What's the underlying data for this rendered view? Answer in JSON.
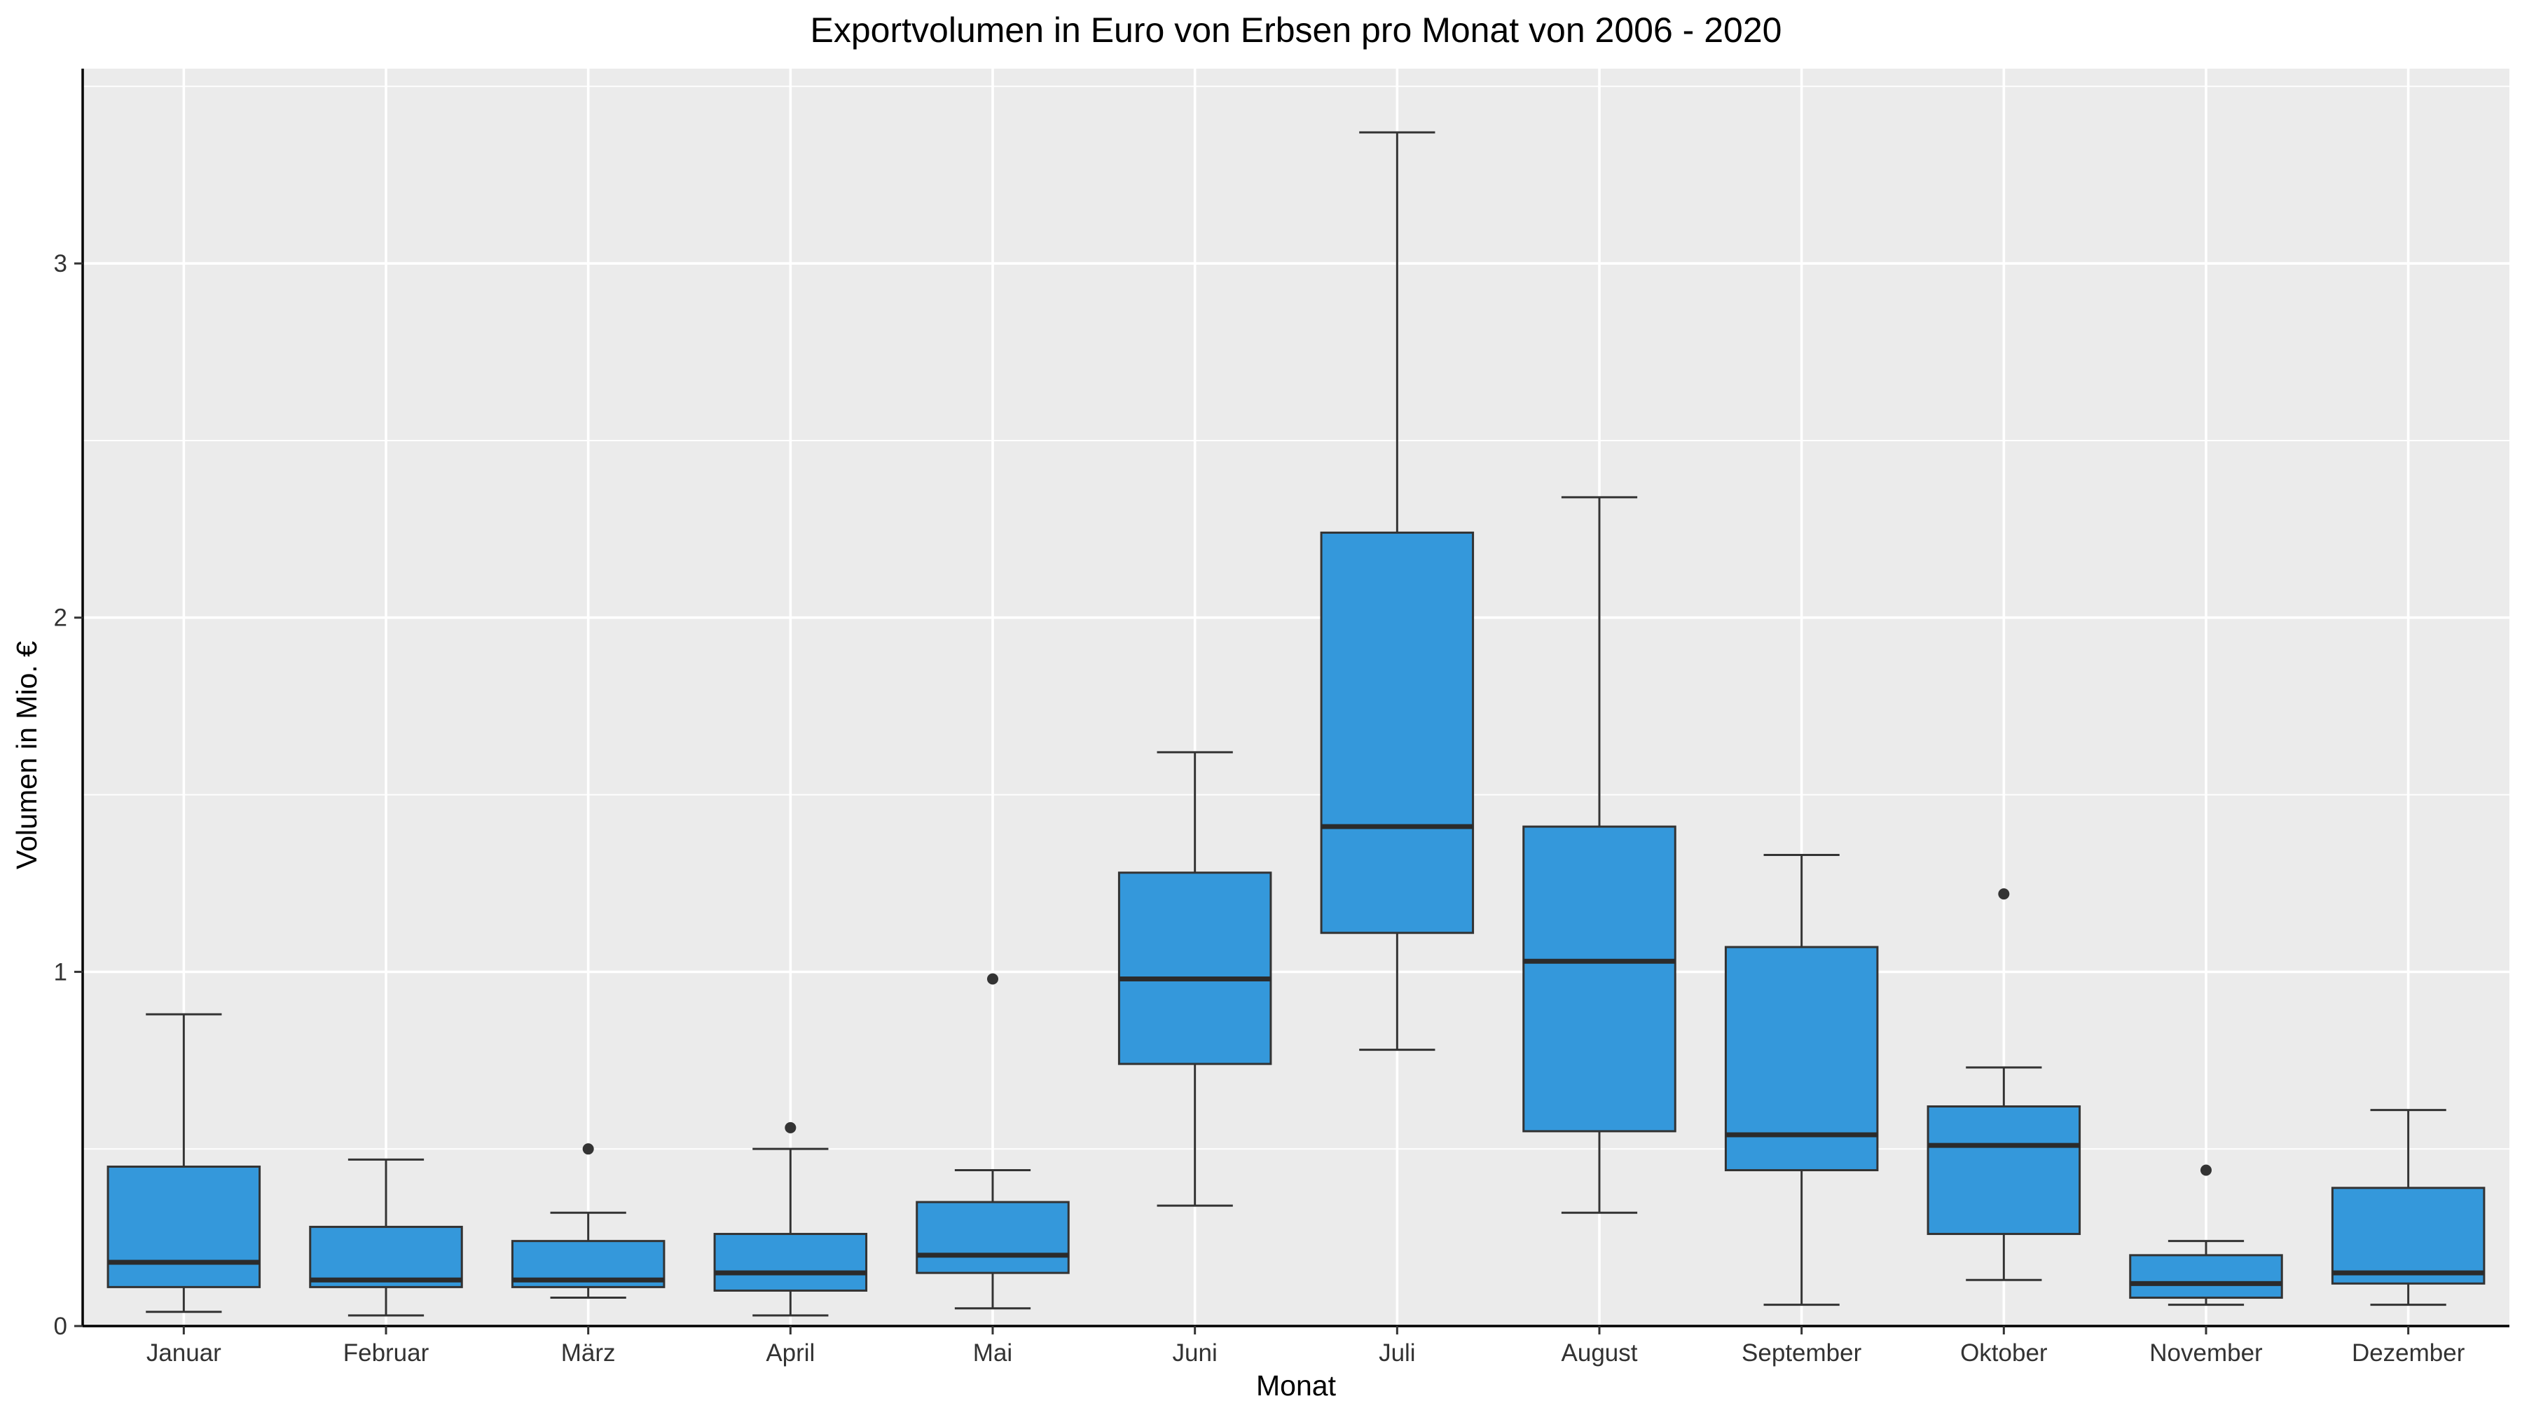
{
  "chart_data": {
    "type": "boxplot",
    "title": "Exportvolumen in Euro von Erbsen pro Monat von 2006 - 2020",
    "xlabel": "Monat",
    "ylabel": "Volumen in Mio. €",
    "ylim": [
      0,
      3.55
    ],
    "y_ticks": [
      0,
      1,
      2,
      3
    ],
    "y_tick_labels": [
      "0",
      "1",
      "2",
      "3"
    ],
    "grid": true,
    "colors": {
      "panel": "#ebebeb",
      "grid": "#ffffff",
      "box_fill": "#3498db",
      "box_stroke": "#333333",
      "median": "#2b2b2b",
      "outlier": "#333333",
      "axis": "#000000"
    },
    "categories": [
      "Januar",
      "Februar",
      "März",
      "April",
      "Mai",
      "Juni",
      "Juli",
      "August",
      "September",
      "Oktober",
      "November",
      "Dezember"
    ],
    "boxes": [
      {
        "whisker_low": 0.04,
        "q1": 0.11,
        "median": 0.18,
        "q3": 0.45,
        "whisker_high": 0.88,
        "outliers": []
      },
      {
        "whisker_low": 0.03,
        "q1": 0.11,
        "median": 0.13,
        "q3": 0.28,
        "whisker_high": 0.47,
        "outliers": []
      },
      {
        "whisker_low": 0.08,
        "q1": 0.11,
        "median": 0.13,
        "q3": 0.24,
        "whisker_high": 0.32,
        "outliers": [
          0.5
        ]
      },
      {
        "whisker_low": 0.03,
        "q1": 0.1,
        "median": 0.15,
        "q3": 0.26,
        "whisker_high": 0.5,
        "outliers": [
          0.56
        ]
      },
      {
        "whisker_low": 0.05,
        "q1": 0.15,
        "median": 0.2,
        "q3": 0.35,
        "whisker_high": 0.44,
        "outliers": [
          0.98
        ]
      },
      {
        "whisker_low": 0.34,
        "q1": 0.74,
        "median": 0.98,
        "q3": 1.28,
        "whisker_high": 1.62,
        "outliers": []
      },
      {
        "whisker_low": 0.78,
        "q1": 1.11,
        "median": 1.41,
        "q3": 2.24,
        "whisker_high": 3.37,
        "outliers": []
      },
      {
        "whisker_low": 0.32,
        "q1": 0.55,
        "median": 1.03,
        "q3": 1.41,
        "whisker_high": 2.34,
        "outliers": []
      },
      {
        "whisker_low": 0.06,
        "q1": 0.44,
        "median": 0.54,
        "q3": 1.07,
        "whisker_high": 1.33,
        "outliers": []
      },
      {
        "whisker_low": 0.13,
        "q1": 0.26,
        "median": 0.51,
        "q3": 0.62,
        "whisker_high": 0.73,
        "outliers": [
          1.22
        ]
      },
      {
        "whisker_low": 0.06,
        "q1": 0.08,
        "median": 0.12,
        "q3": 0.2,
        "whisker_high": 0.24,
        "outliers": [
          0.44
        ]
      },
      {
        "whisker_low": 0.06,
        "q1": 0.12,
        "median": 0.15,
        "q3": 0.39,
        "whisker_high": 0.61,
        "outliers": []
      }
    ]
  }
}
